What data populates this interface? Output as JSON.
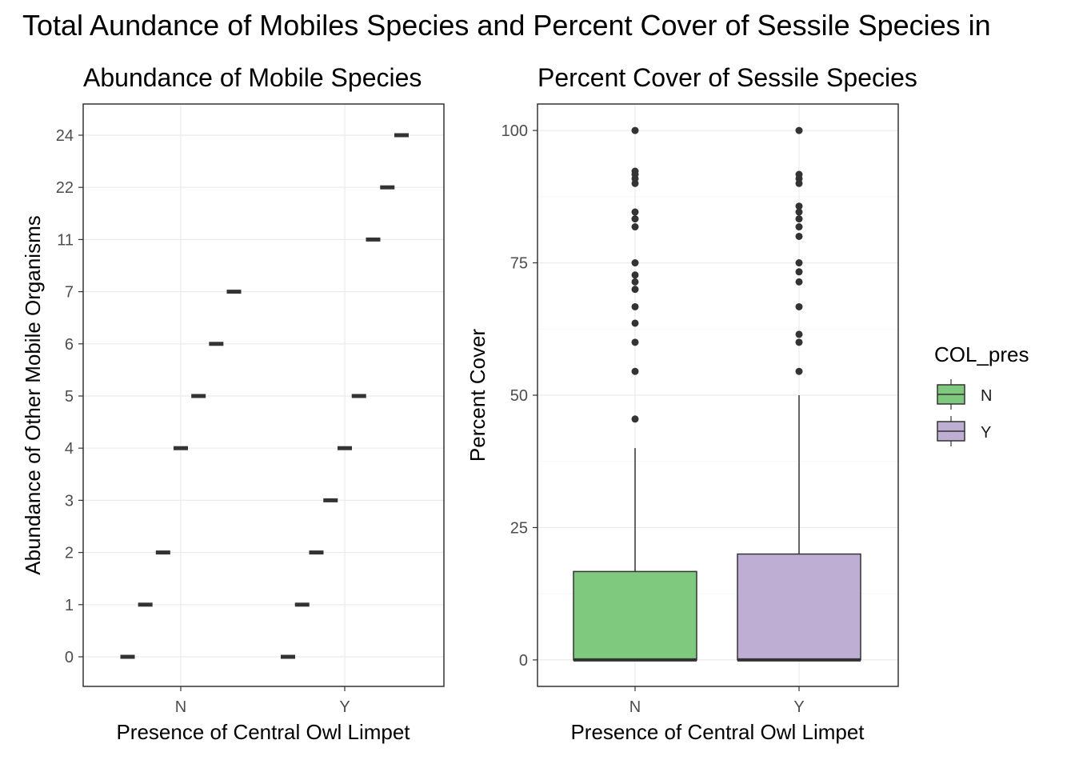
{
  "title": "Total Aundance of Mobiles Species and Percent Cover of Sessile Species in",
  "colors": {
    "N": "#7fc97f",
    "Y": "#beaed4",
    "mark": "#333333",
    "grid": "#ebebeb"
  },
  "chart_data": [
    {
      "type": "scatter",
      "title": "Abundance of Mobile Species",
      "xlabel": "Presence of Central Owl Limpet",
      "ylabel": "Abundance of Other Mobile Organisms",
      "categories": [
        "N",
        "Y"
      ],
      "y_ticks": [
        "0",
        "1",
        "2",
        "3",
        "4",
        "5",
        "6",
        "7",
        "11",
        "22",
        "24"
      ],
      "grid": true,
      "series": [
        {
          "name": "N",
          "values": [
            "0",
            "1",
            "2",
            "4",
            "5",
            "6",
            "7"
          ]
        },
        {
          "name": "Y",
          "values": [
            "0",
            "1",
            "2",
            "3",
            "4",
            "5",
            "11",
            "22",
            "24"
          ]
        }
      ]
    },
    {
      "type": "box",
      "title": "Percent Cover of Sessile Species",
      "xlabel": "Presence of Central Owl Limpet",
      "ylabel": "Percent Cover",
      "categories": [
        "N",
        "Y"
      ],
      "ylim": [
        -5,
        105
      ],
      "y_ticks": [
        0,
        25,
        50,
        75,
        100
      ],
      "grid": true,
      "legend": {
        "title": "COL_pres",
        "position": "right",
        "entries": [
          "N",
          "Y"
        ]
      },
      "boxes": [
        {
          "name": "N",
          "q1": 0,
          "median": 0,
          "q3": 16.7,
          "whisker_low": 0,
          "whisker_high": 40,
          "outliers": [
            45.5,
            54.5,
            60,
            63.6,
            66.7,
            70,
            71.4,
            72.7,
            75,
            81.8,
            83.3,
            84.6,
            90,
            90.9,
            91.7,
            92.3,
            100
          ]
        },
        {
          "name": "Y",
          "q1": 0,
          "median": 0,
          "q3": 20,
          "whisker_low": 0,
          "whisker_high": 50,
          "outliers": [
            54.5,
            60,
            61.5,
            66.7,
            71.4,
            73.3,
            75,
            80,
            81.8,
            83.3,
            84.6,
            85.7,
            90,
            90.9,
            91.7,
            100
          ]
        }
      ]
    }
  ]
}
